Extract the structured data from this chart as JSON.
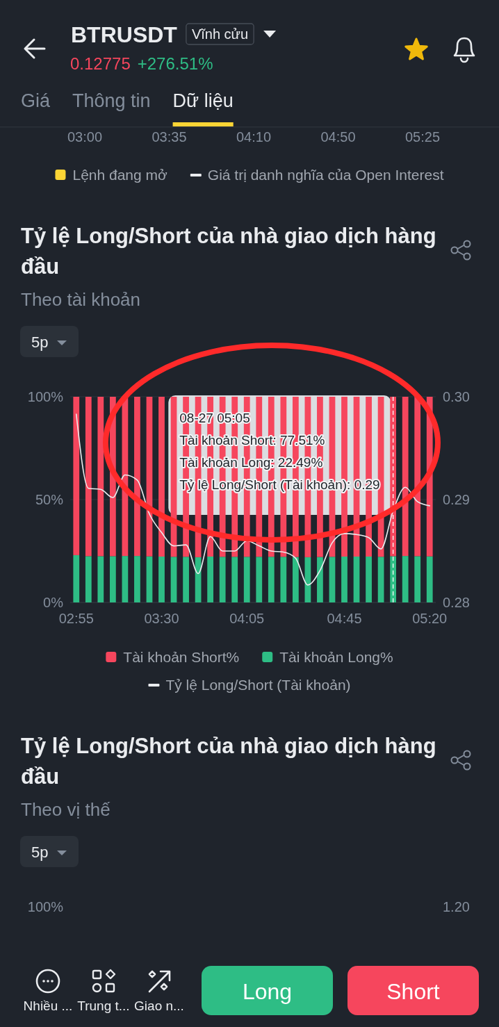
{
  "chart_data": [
    {
      "type": "other",
      "title": "BTRUSDT",
      "annotations": [
        "Vĩnh cửu",
        "0.12775",
        "+276.51%",
        "Giá",
        "Thông tin",
        "Dữ liệu"
      ]
    },
    {
      "type": "other",
      "annotations": [
        "03:00",
        "03:35",
        "04:10",
        "04:50",
        "05:25"
      ],
      "series": [
        {
          "name": "Lệnh đang mở",
          "type": "bar",
          "color": "#fcd535"
        },
        {
          "name": "Giá trị danh nghĩa của Open Interest",
          "type": "line",
          "color": "#eaecef"
        }
      ],
      "legend": "bottom"
    },
    {
      "type": "bar",
      "stacked": true,
      "title": "Tỷ lệ Long/Short của nhà giao dịch hàng đầu",
      "subtitle": "Theo tài khoản",
      "annotations": [
        "5p",
        "08-27 05:05",
        "Tài khoản Short: 77.51%",
        "Tài khoản Long: 22.49%",
        "Tỷ lệ Long/Short (Tài khoản): 0.29"
      ],
      "x": [
        2.9167,
        3.0,
        3.0833,
        3.1667,
        3.25,
        3.3333,
        3.4167,
        3.5,
        3.5833,
        3.6667,
        3.75,
        3.8333,
        3.9167,
        4.0,
        4.0833,
        4.1667,
        4.25,
        4.3333,
        4.4167,
        4.5,
        4.5833,
        4.6667,
        4.75,
        4.8333,
        4.9167,
        5.0,
        5.0833,
        5.1667,
        5.25,
        5.3333
      ],
      "xlim": [
        2.875,
        5.375
      ],
      "xticks": [
        {
          "value": 2.9167,
          "label": "02:55"
        },
        {
          "value": 3.5,
          "label": "03:30"
        },
        {
          "value": 4.0833,
          "label": "04:05"
        },
        {
          "value": 4.75,
          "label": "04:45"
        },
        {
          "value": 5.3333,
          "label": "05:20"
        }
      ],
      "ylim": [
        0,
        100
      ],
      "yticks": [
        {
          "value": 0,
          "label": "0%"
        },
        {
          "value": 50,
          "label": "50%"
        },
        {
          "value": 100,
          "label": "100%"
        }
      ],
      "y2lim": [
        0.28,
        0.3
      ],
      "y2ticks": [
        0.28,
        0.29,
        {
          "value": 0.3,
          "label": "0.30"
        }
      ],
      "grid": "y",
      "legend": "bottom",
      "series": [
        {
          "name": "Tài khoản Long%",
          "color": "#2ebd85",
          "values": [
            23.0,
            22.5,
            22.5,
            22.5,
            22.6,
            22.6,
            22.4,
            22.3,
            22.2,
            22.2,
            22.0,
            22.3,
            22.2,
            22.2,
            22.2,
            22.2,
            22.2,
            22.2,
            22.1,
            22.0,
            22.1,
            22.2,
            22.3,
            22.3,
            22.3,
            22.2,
            22.49,
            22.6,
            22.5,
            22.4
          ]
        },
        {
          "name": "Tài khoản Short%",
          "color": "#f6465d",
          "values": [
            77.0,
            77.5,
            77.5,
            77.5,
            77.4,
            77.4,
            77.6,
            77.7,
            77.8,
            77.8,
            78.0,
            77.7,
            77.8,
            77.8,
            77.8,
            77.8,
            77.8,
            77.8,
            77.9,
            78.0,
            77.9,
            77.8,
            77.7,
            77.7,
            77.7,
            77.8,
            77.51,
            77.4,
            77.5,
            77.6
          ]
        },
        {
          "name": "Tỷ lệ Long/Short (Tài khoản)",
          "type": "line",
          "axis": "y2",
          "color": "#eaecef",
          "values": [
            0.2983,
            0.2911,
            0.291,
            0.2902,
            0.2924,
            0.2919,
            0.2886,
            0.2868,
            0.2855,
            0.2856,
            0.2828,
            0.2864,
            0.285,
            0.285,
            0.286,
            0.2855,
            0.285,
            0.2849,
            0.2843,
            0.2817,
            0.2831,
            0.2858,
            0.2867,
            0.2866,
            0.2863,
            0.2852,
            0.2889,
            0.2912,
            0.2898,
            0.2894
          ]
        }
      ],
      "ref_lines": [
        {
          "axis": "x",
          "value": 5.0833,
          "color": "#ffffff",
          "line_style": "dashed"
        }
      ]
    },
    {
      "type": "other",
      "title": "Tỷ lệ Long/Short của nhà giao dịch hàng đầu",
      "subtitle": "Theo vị thế",
      "annotations": [
        "5p",
        "100%",
        "1.20"
      ]
    },
    {
      "type": "other",
      "annotations": [
        "Nhiều ...",
        "Trung t...",
        "Giao n...",
        "Long",
        "Short"
      ]
    }
  ]
}
